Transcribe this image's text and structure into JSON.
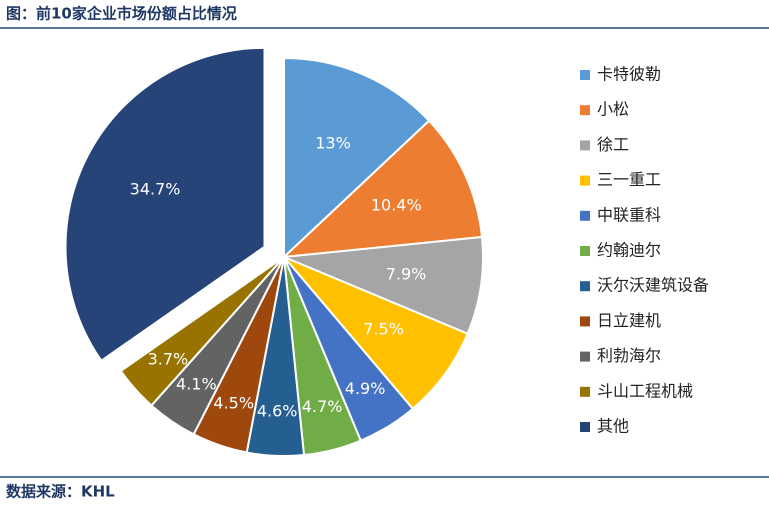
{
  "chart_data": {
    "type": "pie",
    "title": "图：前10家企业市场份额占比情况",
    "source": "数据来源：KHL",
    "categories": [
      "卡特彼勒",
      "小松",
      "徐工",
      "三一重工",
      "中联重科",
      "约翰迪尔",
      "沃尔沃建筑设备",
      "日立建机",
      "利勃海尔",
      "斗山工程机械",
      "其他"
    ],
    "values": [
      13,
      10.4,
      7.9,
      7.5,
      4.9,
      4.7,
      4.6,
      4.5,
      4.1,
      3.7,
      34.7
    ],
    "value_labels": [
      "13%",
      "10.4%",
      "7.9%",
      "7.5%",
      "4.9%",
      "4.7%",
      "4.6%",
      "4.5%",
      "4.1%",
      "3.7%",
      "34.7%"
    ],
    "colors": [
      "#5b9bd5",
      "#ed7d31",
      "#a5a5a5",
      "#ffc000",
      "#4472c4",
      "#70ad47",
      "#255e91",
      "#9e480e",
      "#636363",
      "#997300",
      "#264478"
    ],
    "exploded": [
      10
    ],
    "legend": "right"
  }
}
